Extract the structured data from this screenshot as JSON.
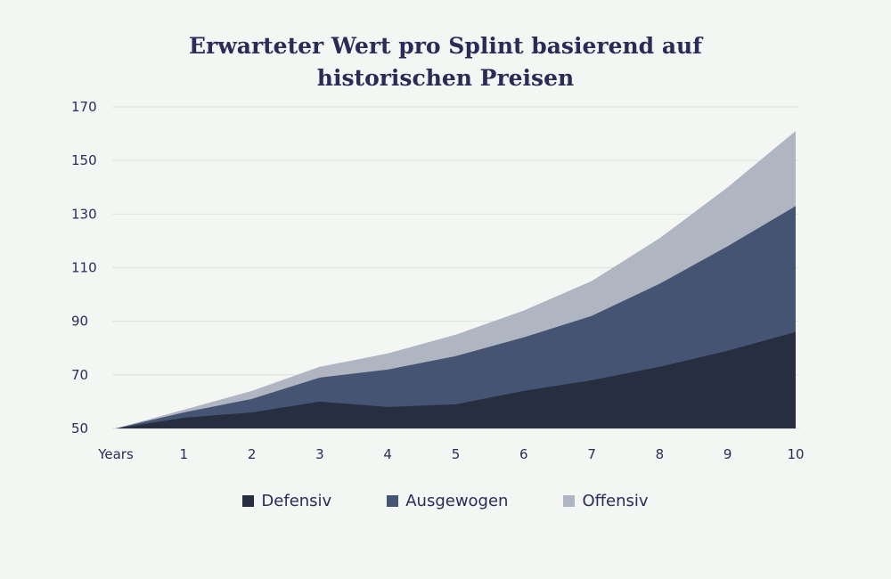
{
  "chart_data": {
    "type": "area",
    "stacked": true,
    "title_lines": [
      "Erwarteter Wert pro Splint basierend auf",
      "historischen Preisen"
    ],
    "xlabel": "",
    "ylabel": "",
    "x_ticks": [
      "Years",
      "1",
      "2",
      "3",
      "4",
      "5",
      "6",
      "7",
      "8",
      "9",
      "10"
    ],
    "x": [
      0,
      1,
      2,
      3,
      4,
      5,
      6,
      7,
      8,
      9,
      10
    ],
    "y_ticks": [
      "50",
      "70",
      "90",
      "110",
      "130",
      "150",
      "170"
    ],
    "ylim": [
      50,
      170
    ],
    "grid": true,
    "legend_position": "bottom",
    "series": [
      {
        "name": "Defensiv",
        "color": "#272e40",
        "values": [
          50,
          54,
          56,
          60,
          58,
          59,
          64,
          68,
          73,
          79,
          86
        ]
      },
      {
        "name": "Ausgewogen",
        "color": "#455472",
        "values": [
          50,
          56,
          61,
          69,
          72,
          77,
          84,
          92,
          104,
          118,
          133
        ]
      },
      {
        "name": "Offensiv",
        "color": "#afb6c2",
        "values": [
          50,
          57,
          64,
          73,
          78,
          85,
          94,
          105,
          121,
          140,
          161
        ]
      }
    ]
  }
}
